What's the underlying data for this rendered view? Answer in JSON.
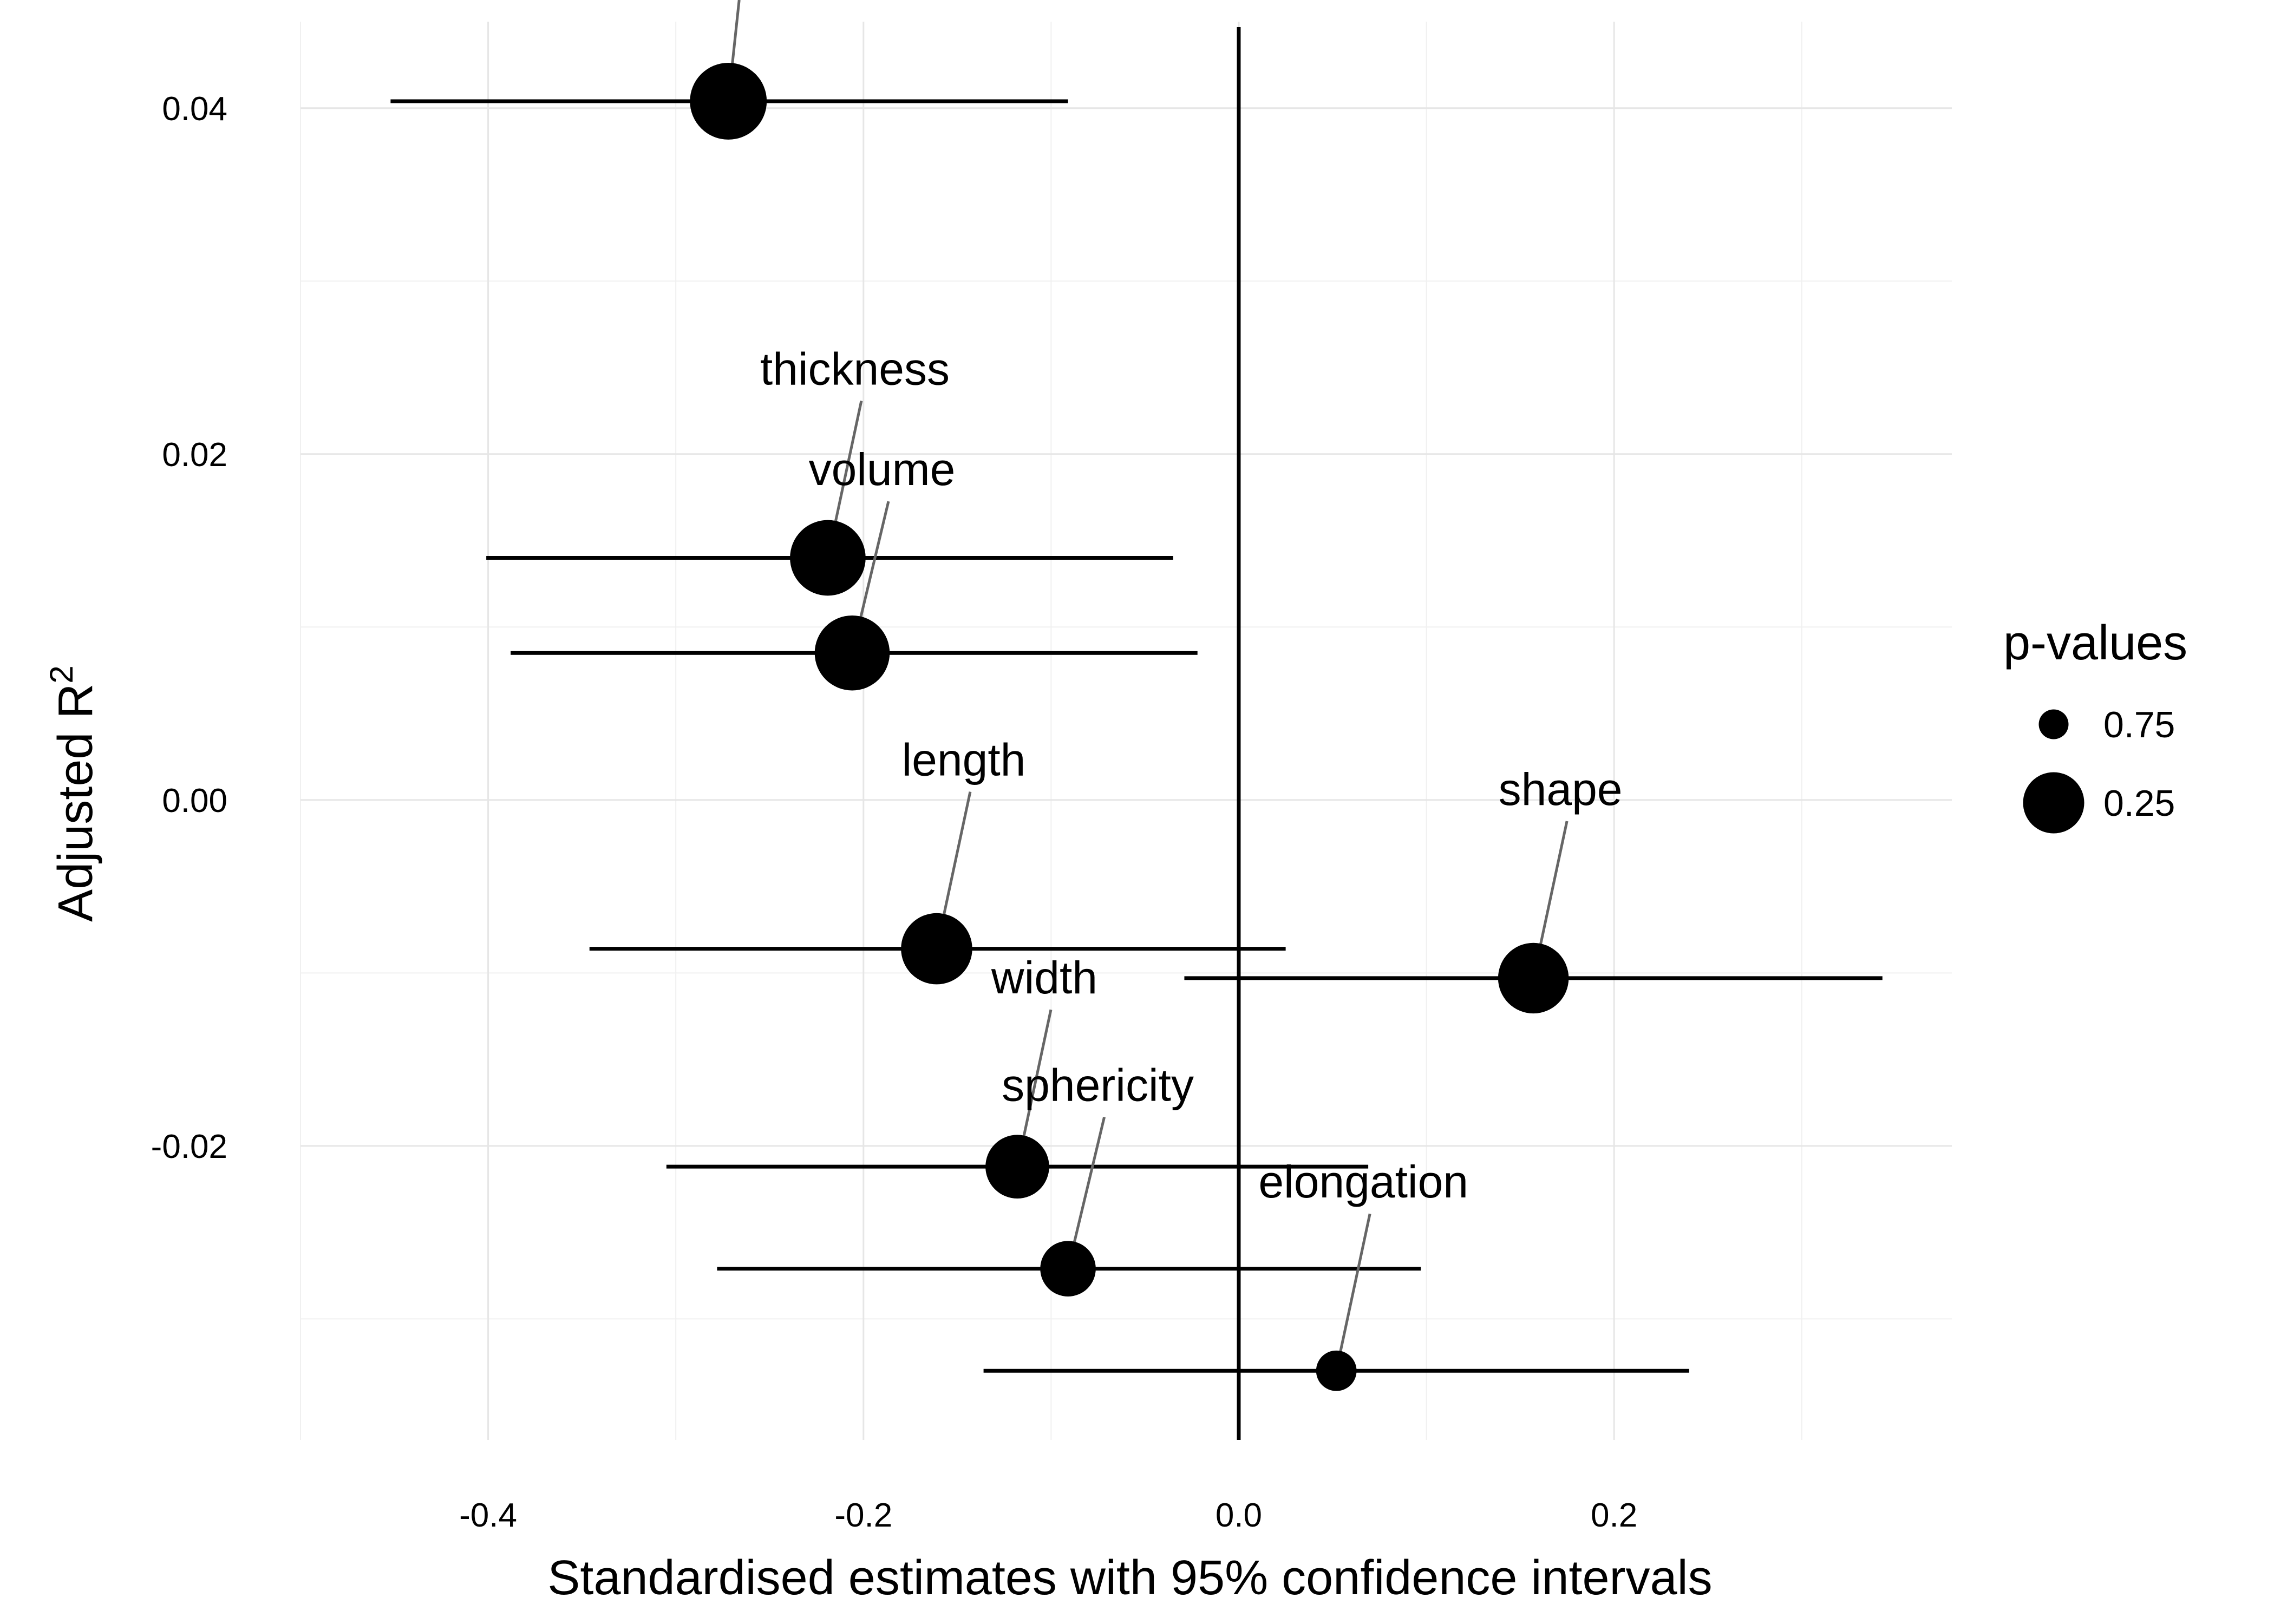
{
  "chart_data": {
    "type": "scatter",
    "xlabel": "Standardised estimates with 95% confidence intervals",
    "ylabel": "Adjusted R",
    "ylabel_superscript": "2",
    "xlim": [
      -0.5,
      0.38
    ],
    "ylim": [
      -0.037,
      0.045
    ],
    "x_ticks": [
      -0.4,
      -0.2,
      0.0,
      0.2
    ],
    "x_tick_labels": [
      "-0.4",
      "-0.2",
      "0.0",
      "0.2"
    ],
    "y_ticks": [
      -0.02,
      0.0,
      0.02,
      0.04
    ],
    "y_tick_labels": [
      "-0.02",
      "0.00",
      "0.02",
      "0.04"
    ],
    "grid": true,
    "reference_line_x": 0,
    "legend": {
      "title": "p-values",
      "position": "right",
      "items": [
        {
          "label": "0.75",
          "p": 0.75
        },
        {
          "label": "0.25",
          "p": 0.25
        }
      ]
    },
    "points": [
      {
        "name": "",
        "estimate": -0.272,
        "lower": -0.452,
        "upper": -0.091,
        "adj_r2": 0.0404,
        "p": 0.001
      },
      {
        "name": "thickness",
        "estimate": -0.219,
        "lower": -0.401,
        "upper": -0.035,
        "adj_r2": 0.014,
        "p": 0.02
      },
      {
        "name": "volume",
        "estimate": -0.206,
        "lower": -0.388,
        "upper": -0.022,
        "adj_r2": 0.0085,
        "p": 0.03
      },
      {
        "name": "length",
        "estimate": -0.161,
        "lower": -0.346,
        "upper": 0.025,
        "adj_r2": -0.0086,
        "p": 0.09
      },
      {
        "name": "shape",
        "estimate": 0.157,
        "lower": -0.029,
        "upper": 0.343,
        "adj_r2": -0.0103,
        "p": 0.1
      },
      {
        "name": "width",
        "estimate": -0.118,
        "lower": -0.305,
        "upper": 0.069,
        "adj_r2": -0.0212,
        "p": 0.21
      },
      {
        "name": "sphericity",
        "estimate": -0.091,
        "lower": -0.278,
        "upper": 0.097,
        "adj_r2": -0.0271,
        "p": 0.34
      },
      {
        "name": "elongation",
        "estimate": 0.052,
        "lower": -0.136,
        "upper": 0.24,
        "adj_r2": -0.033,
        "p": 0.58
      }
    ]
  }
}
